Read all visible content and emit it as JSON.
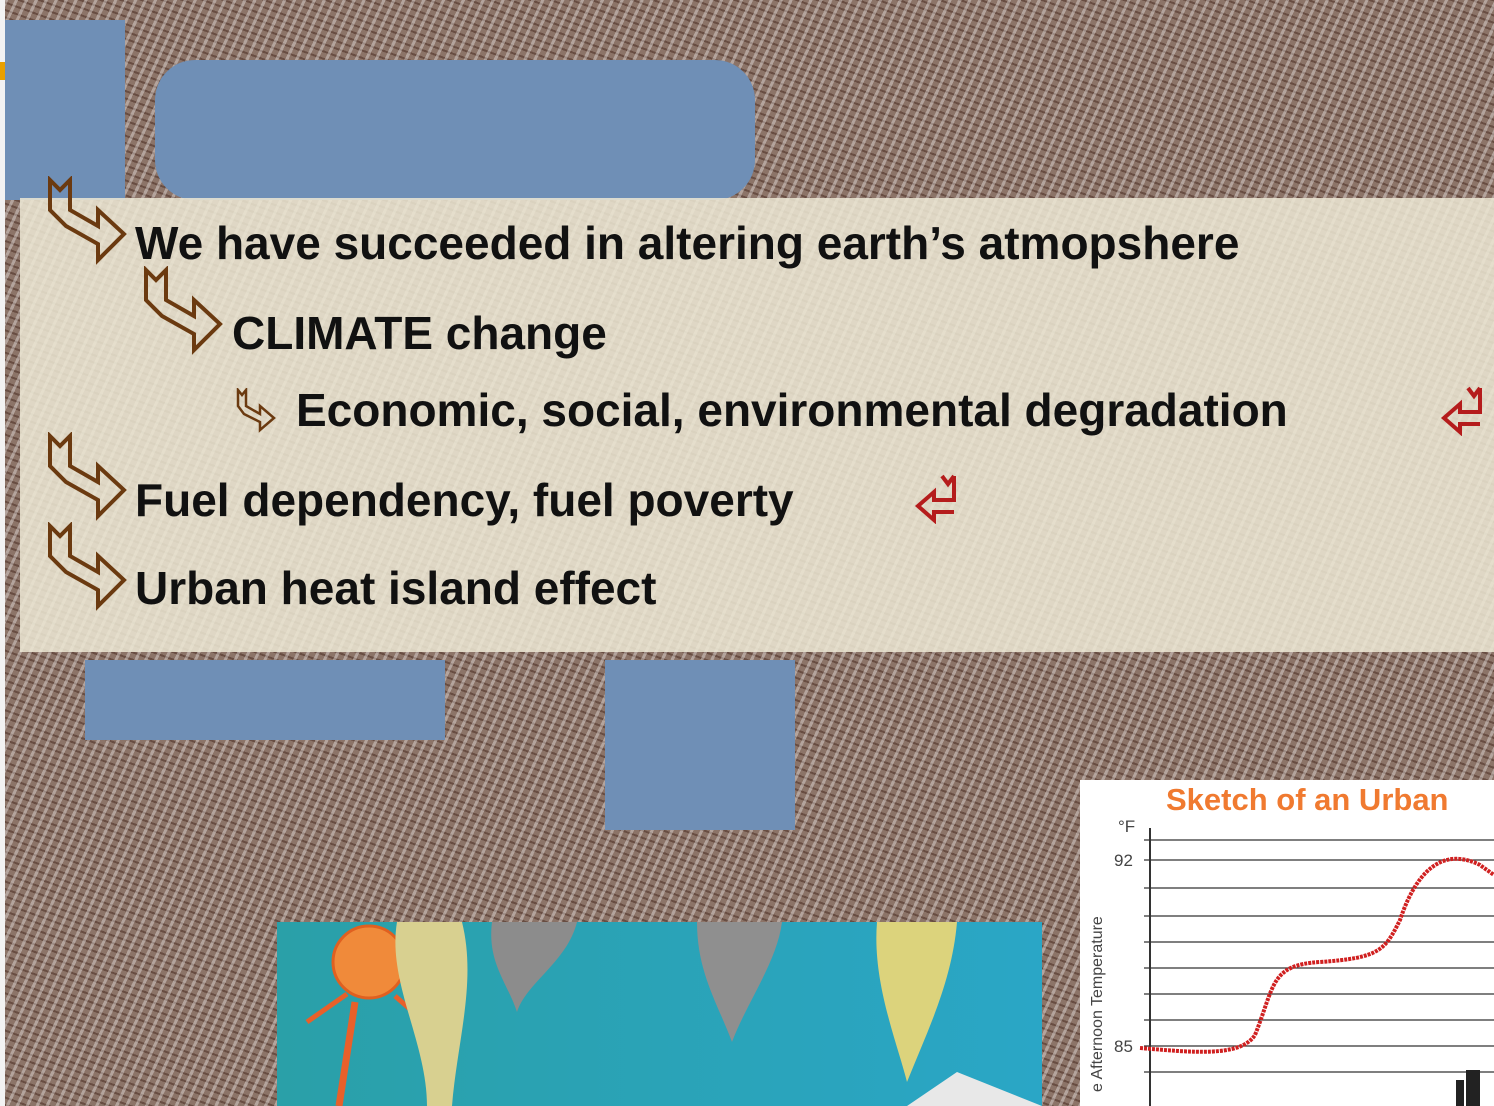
{
  "bullets": [
    "We have succeeded in altering earth’s atmopshere",
    "CLIMATE change",
    "Economic, social, environmental degradation",
    "Fuel dependency, fuel poverty",
    "Urban heat island effect"
  ],
  "inset_chart": {
    "title": "Sketch of an Urban",
    "unit": "°F",
    "ticks": [
      92,
      85
    ],
    "axis_label": "e Afternoon Temperature"
  }
}
